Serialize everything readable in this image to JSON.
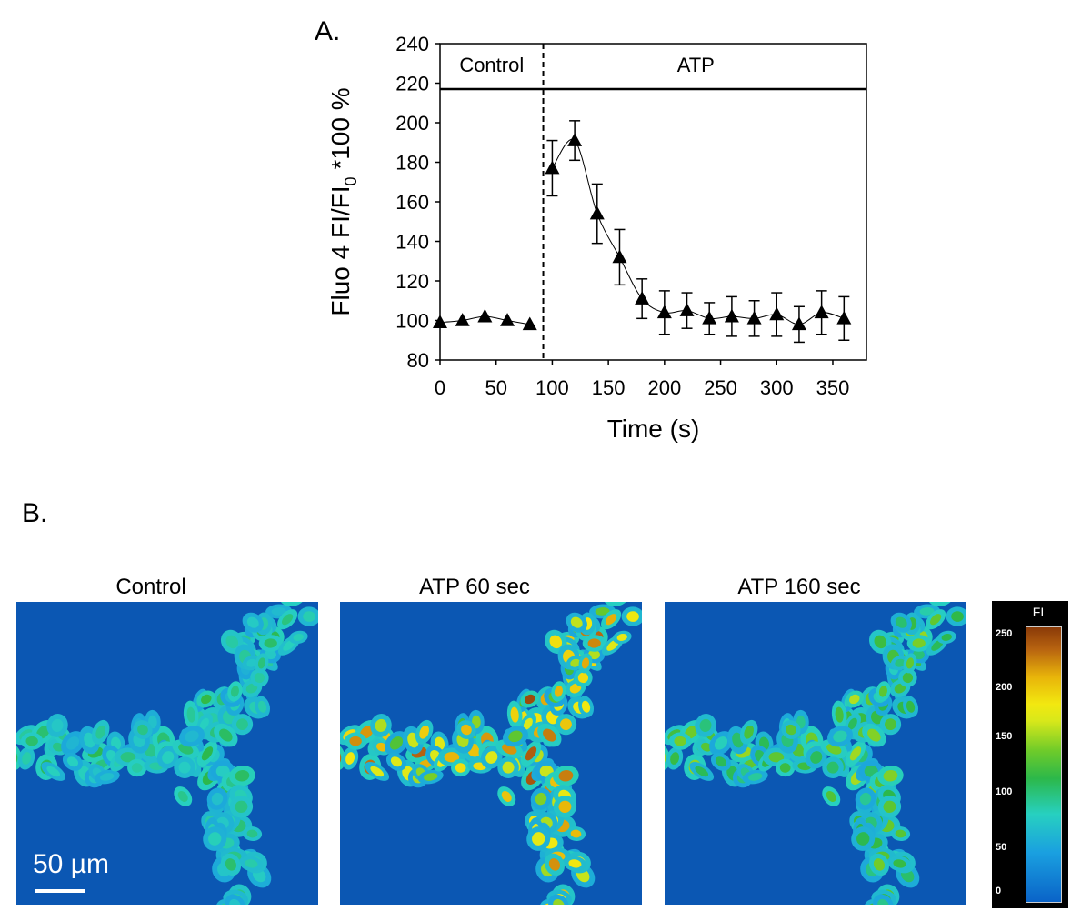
{
  "panel_a_label": "A.",
  "panel_b_label": "B.",
  "chart_data": {
    "type": "line",
    "title": "",
    "xlabel": "Time (s)",
    "ylabel_main": "Fluo 4 FI/FI",
    "ylabel_sub": "0",
    "ylabel_tail": " *100 %",
    "xlim": [
      0,
      380
    ],
    "ylim": [
      80,
      240
    ],
    "xticks": [
      0,
      50,
      100,
      150,
      200,
      250,
      300,
      350
    ],
    "yticks": [
      80,
      100,
      120,
      140,
      160,
      180,
      200,
      220,
      240
    ],
    "marker": "triangle",
    "series": [
      {
        "name": "Fluo 4",
        "x": [
          0,
          20,
          40,
          60,
          80,
          100,
          120,
          140,
          160,
          180,
          200,
          220,
          240,
          260,
          280,
          300,
          320,
          340,
          360
        ],
        "y": [
          99,
          100,
          102,
          100,
          98,
          177,
          191,
          154,
          132,
          111,
          104,
          105,
          101,
          102,
          101,
          103,
          98,
          104,
          101
        ],
        "error": [
          1.5,
          1.5,
          2,
          1.5,
          1.5,
          14,
          10,
          15,
          14,
          10,
          11,
          9,
          8,
          10,
          9,
          11,
          9,
          11,
          11
        ]
      }
    ],
    "annotations": {
      "divider_x": 92,
      "bar_y": 217,
      "control_label": "Control",
      "atp_label": "ATP"
    }
  },
  "images": [
    {
      "title": "Control",
      "intensity": 1.0
    },
    {
      "title": "ATP 60 sec",
      "intensity": 2.1
    },
    {
      "title": "ATP 160 sec",
      "intensity": 1.35
    }
  ],
  "scale_bar_label": "50 µm",
  "colorbar": {
    "title": "FI",
    "ticks": [
      "250",
      "200",
      "150",
      "100",
      "50",
      "0"
    ],
    "tick_values": [
      250,
      200,
      150,
      100,
      50,
      0
    ],
    "max": 255
  }
}
